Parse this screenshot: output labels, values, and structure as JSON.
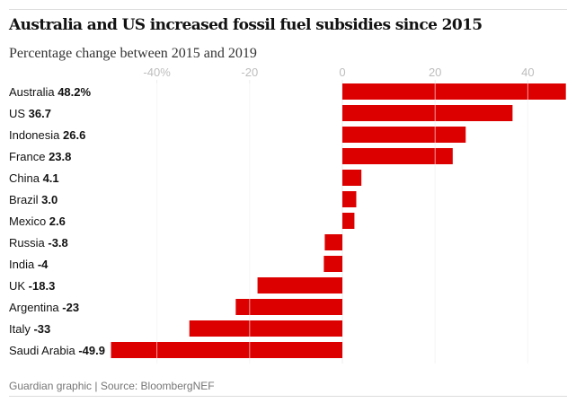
{
  "chart_data": {
    "type": "bar",
    "orientation": "horizontal",
    "title": "Australia and US increased fossil fuel subsidies since 2015",
    "subtitle": "Percentage change between 2015 and 2019",
    "categories": [
      "Australia",
      "US",
      "Indonesia",
      "France",
      "China",
      "Brazil",
      "Mexico",
      "Russia",
      "India",
      "UK",
      "Argentina",
      "Italy",
      "Saudi Arabia"
    ],
    "values": [
      48.2,
      36.7,
      26.6,
      23.8,
      4.1,
      3.0,
      2.6,
      -3.8,
      -4,
      -18.3,
      -23,
      -33,
      -49.9
    ],
    "value_labels": [
      "48.2%",
      "36.7",
      "26.6",
      "23.8",
      "4.1",
      "3.0",
      "2.6",
      "-3.8",
      "-4",
      "-18.3",
      "-23",
      "-33",
      "-49.9"
    ],
    "xticks": [
      -40,
      -20,
      0,
      20,
      40
    ],
    "xtick_labels": [
      "-40%",
      "-20",
      "0",
      "20",
      "40"
    ],
    "xlim": [
      -50,
      48.5
    ],
    "bar_color": "#dc0000",
    "grid": true,
    "source": "Guardian graphic | Source: BloombergNEF"
  }
}
